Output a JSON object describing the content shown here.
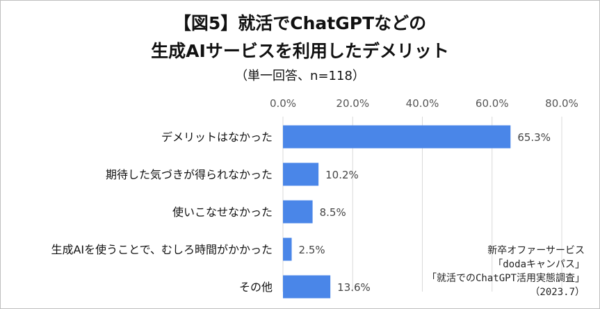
{
  "title": {
    "line1": "【図5】就活でChatGPTなどの",
    "line2": "生成AIサービスを利用したデメリット",
    "line3": "（単一回答、n=118）"
  },
  "source": {
    "line1": "新卒オファーサービス",
    "line2": "「dodaキャンパス」",
    "line3": "「就活でのChatGPT活用実態調査」",
    "line4": "（2023.7）"
  },
  "chart_data": {
    "type": "bar",
    "orientation": "horizontal",
    "categories": [
      "デメリットはなかった",
      "期待した気づきが得られなかった",
      "使いこなせなかった",
      "生成AIを使うことで、むしろ時間がかかった",
      "その他"
    ],
    "values": [
      65.3,
      10.2,
      8.5,
      2.5,
      13.6
    ],
    "value_labels": [
      "65.3%",
      "10.2%",
      "8.5%",
      "2.5%",
      "13.6%"
    ],
    "xlim": [
      0,
      80
    ],
    "xticks": [
      0,
      20,
      40,
      60,
      80
    ],
    "xtick_labels": [
      "0.0%",
      "20.0%",
      "40.0%",
      "60.0%",
      "80.0%"
    ],
    "axis_position": "top",
    "grid": true,
    "bar_color": "#4a86e8",
    "grid_color": "#d9d9d9"
  }
}
